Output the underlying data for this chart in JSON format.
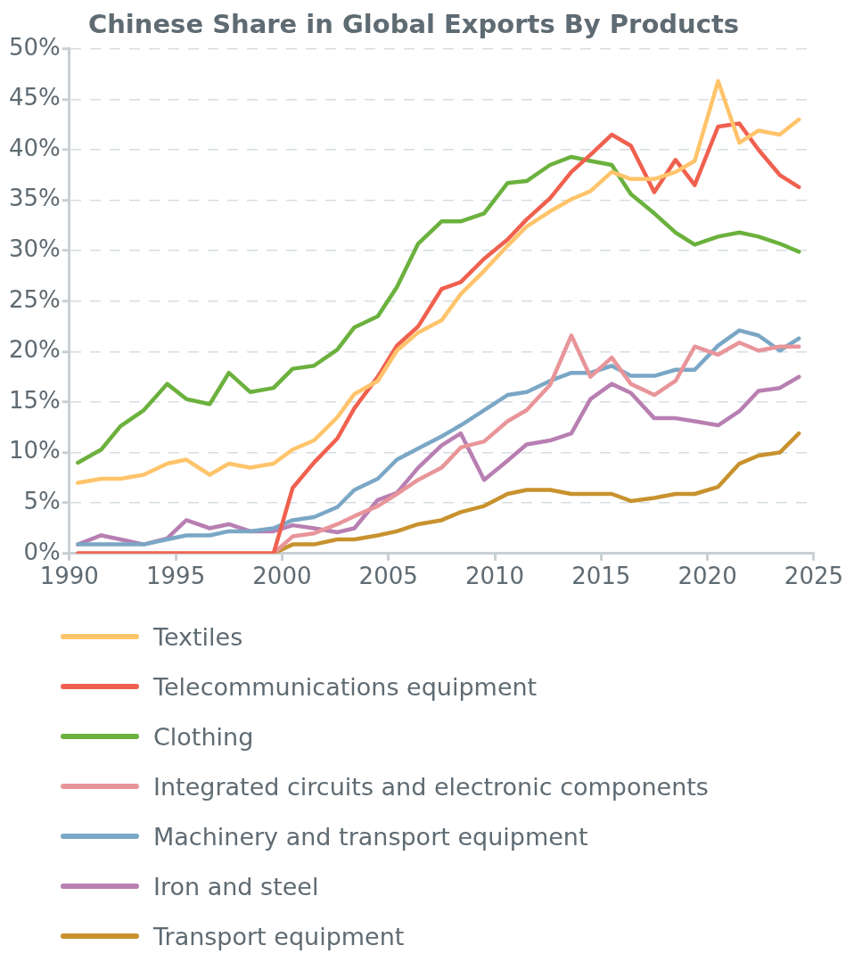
{
  "chart_data": {
    "type": "line",
    "title": "Chinese Share in Global Exports By Products",
    "x": [
      1990.4,
      1991.5,
      1992.4,
      1993.5,
      1994.6,
      1995.5,
      1996.6,
      1997.5,
      1998.5,
      1999.6,
      2000.5,
      2001.5,
      2002.6,
      2003.4,
      2004.5,
      2005.4,
      2006.4,
      2007.5,
      2008.4,
      2009.5,
      2010.6,
      2011.5,
      2012.6,
      2013.6,
      2014.5,
      2015.5,
      2016.4,
      2017.5,
      2018.5,
      2019.4,
      2020.5,
      2021.5,
      2022.4,
      2023.4,
      2024.3
    ],
    "series": [
      {
        "name": "Textiles",
        "color": "#ffc46b",
        "values": [
          7.0,
          7.4,
          7.4,
          7.8,
          8.9,
          9.3,
          7.8,
          8.9,
          8.5,
          8.9,
          10.3,
          11.2,
          13.5,
          15.8,
          17.1,
          20.1,
          21.9,
          23.1,
          25.7,
          28.0,
          30.5,
          32.4,
          33.9,
          35.1,
          35.9,
          37.8,
          37.1,
          37.1,
          37.8,
          38.9,
          46.8,
          40.7,
          41.9,
          41.5,
          43.0
        ]
      },
      {
        "name": "Telecommunications equipment",
        "color": "#f0604f",
        "values": [
          0,
          0,
          0,
          0,
          0,
          0,
          0,
          0,
          0,
          0,
          6.5,
          9.0,
          11.4,
          14.4,
          17.5,
          20.6,
          22.5,
          26.2,
          26.9,
          29.2,
          31.1,
          33.1,
          35.2,
          37.8,
          39.5,
          41.5,
          40.4,
          35.8,
          39.0,
          36.5,
          42.3,
          42.6,
          40.0,
          37.5,
          36.3
        ]
      },
      {
        "name": "Clothing",
        "color": "#6bb13d",
        "values": [
          9.0,
          10.3,
          12.6,
          14.2,
          16.8,
          15.3,
          14.8,
          17.9,
          16.0,
          16.4,
          18.3,
          18.6,
          20.2,
          22.4,
          23.5,
          26.4,
          30.7,
          32.9,
          32.9,
          33.7,
          36.7,
          36.9,
          38.5,
          39.3,
          38.9,
          38.5,
          35.6,
          33.7,
          31.8,
          30.6,
          31.4,
          31.8,
          31.4,
          30.7,
          29.9
        ]
      },
      {
        "name": "Integrated circuits and electronic components",
        "color": "#e8959a",
        "values": [
          0,
          0,
          0,
          0,
          0,
          0,
          0,
          0,
          0,
          0,
          1.7,
          2.0,
          2.9,
          3.7,
          4.7,
          5.9,
          7.3,
          8.5,
          10.5,
          11.1,
          13.1,
          14.2,
          16.7,
          21.6,
          17.5,
          19.4,
          16.8,
          15.7,
          17.1,
          20.5,
          19.7,
          20.9,
          20.1,
          20.5,
          20.5
        ]
      },
      {
        "name": "Machinery and transport equipment",
        "color": "#7ba7c6",
        "values": [
          0.9,
          0.9,
          0.9,
          0.9,
          1.4,
          1.8,
          1.8,
          2.2,
          2.2,
          2.5,
          3.3,
          3.6,
          4.6,
          6.3,
          7.4,
          9.3,
          10.4,
          11.6,
          12.7,
          14.2,
          15.7,
          16.0,
          17.1,
          17.9,
          17.9,
          18.6,
          17.6,
          17.6,
          18.2,
          18.2,
          20.6,
          22.1,
          21.6,
          20.1,
          21.3
        ]
      },
      {
        "name": "Iron and steel",
        "color": "#b87fb2",
        "values": [
          0.9,
          1.8,
          1.4,
          0.9,
          1.5,
          3.3,
          2.5,
          2.9,
          2.2,
          2.2,
          2.8,
          2.5,
          2.1,
          2.5,
          5.3,
          6.0,
          8.5,
          10.7,
          11.9,
          7.3,
          9.2,
          10.8,
          11.2,
          11.9,
          15.3,
          16.8,
          15.9,
          13.4,
          13.4,
          13.1,
          12.7,
          14.1,
          16.1,
          16.4,
          17.5
        ]
      },
      {
        "name": "Transport equipment",
        "color": "#c8922e",
        "values": [
          0,
          0,
          0,
          0,
          0,
          0,
          0,
          0,
          0,
          0,
          0.9,
          0.9,
          1.4,
          1.4,
          1.8,
          2.2,
          2.9,
          3.3,
          4.1,
          4.7,
          5.9,
          6.3,
          6.3,
          5.9,
          5.9,
          5.9,
          5.2,
          5.5,
          5.9,
          5.9,
          6.6,
          8.9,
          9.7,
          10.0,
          11.9
        ]
      }
    ],
    "xlim": [
      1990,
      2025
    ],
    "xticks": [
      1990,
      1995,
      2000,
      2005,
      2010,
      2015,
      2020,
      2025
    ],
    "ylim": [
      0,
      50
    ],
    "yticks": [
      {
        "value": 0,
        "label": "0%"
      },
      {
        "value": 5,
        "label": "5%"
      },
      {
        "value": 10,
        "label": "10%"
      },
      {
        "value": 15,
        "label": "15%"
      },
      {
        "value": 20,
        "label": "20%"
      },
      {
        "value": 25,
        "label": "25%"
      },
      {
        "value": 30,
        "label": "30%"
      },
      {
        "value": 35,
        "label": "35%"
      },
      {
        "value": 40,
        "label": "40%"
      },
      {
        "value": 45,
        "label": "45%"
      },
      {
        "value": 50,
        "label": "50%"
      }
    ],
    "grid": "y",
    "legend": "bottom",
    "marker": "none",
    "line_style": "solid"
  }
}
